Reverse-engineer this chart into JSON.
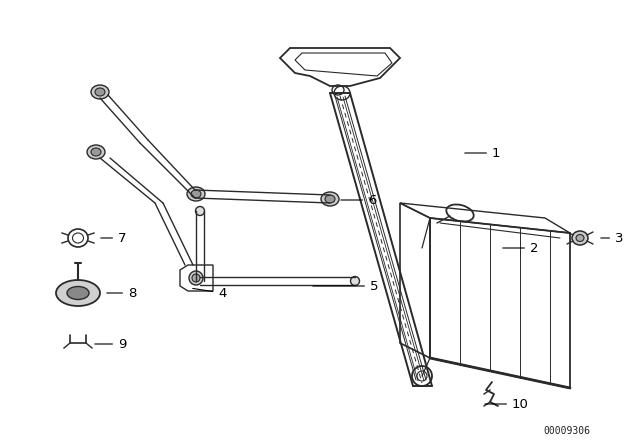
{
  "background_color": "#ffffff",
  "line_color": "#2a2a2a",
  "label_color": "#000000",
  "part_number_text": "00009306",
  "part_number_fontsize": 7,
  "label_fontsize": 9.5
}
